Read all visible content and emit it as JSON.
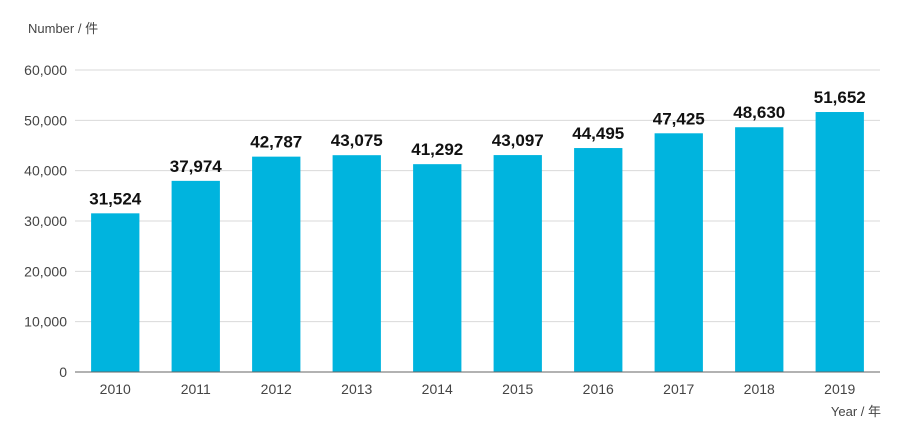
{
  "chart_data": {
    "type": "bar",
    "ylabel": "Number / 件",
    "xlabel": "Year / 年",
    "categories": [
      "2010",
      "2011",
      "2012",
      "2013",
      "2014",
      "2015",
      "2016",
      "2017",
      "2018",
      "2019"
    ],
    "values": [
      31524,
      37974,
      42787,
      43075,
      41292,
      43097,
      44495,
      47425,
      48630,
      51652
    ],
    "value_labels": [
      "31,524",
      "37,974",
      "42,787",
      "43,075",
      "41,292",
      "43,097",
      "44,495",
      "47,425",
      "48,630",
      "51,652"
    ],
    "ylim": [
      0,
      60000
    ],
    "yticks": [
      0,
      10000,
      20000,
      30000,
      40000,
      50000,
      60000
    ],
    "ytick_labels": [
      "0",
      "10,000",
      "20,000",
      "30,000",
      "40,000",
      "50,000",
      "60,000"
    ],
    "grid": true,
    "bar_color": "#00b4de"
  }
}
